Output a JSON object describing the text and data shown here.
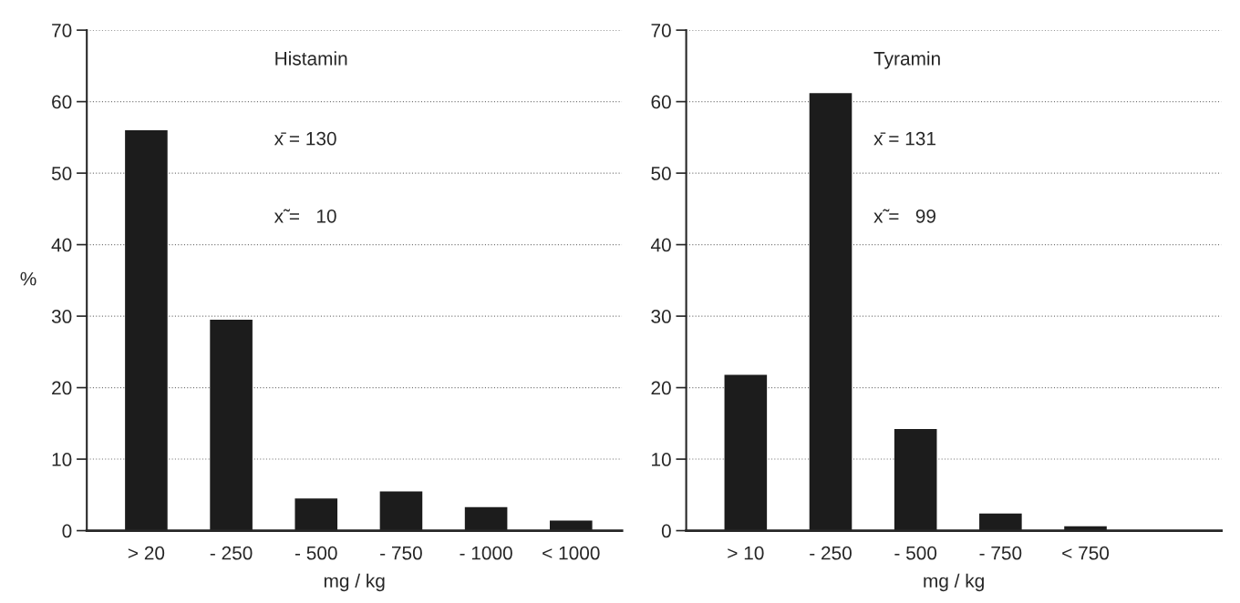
{
  "chart_data": [
    {
      "type": "bar",
      "title": "Histamin",
      "xlabel": "mg / kg",
      "ylabel": "%",
      "categories": [
        "> 20",
        "- 250",
        "- 500",
        "- 750",
        "- 1000",
        "< 1000"
      ],
      "values": [
        56,
        29.5,
        4.5,
        5.5,
        3.3,
        1.4
      ],
      "color": "#1c1c1c",
      "ylim": [
        0,
        70
      ],
      "yticks": [
        0,
        10,
        20,
        30,
        40,
        50,
        60,
        70
      ],
      "grid": "y",
      "annotations": [
        "x̄ = 130",
        "x̃ =   10"
      ]
    },
    {
      "type": "bar",
      "title": "Tyramin",
      "xlabel": "mg / kg",
      "categories": [
        "> 10",
        "- 250",
        "- 500",
        "- 750",
        "< 750"
      ],
      "values": [
        21.8,
        61.2,
        14.2,
        2.4,
        0.6
      ],
      "color": "#1c1c1c",
      "ylim": [
        0,
        70
      ],
      "yticks": [
        0,
        10,
        20,
        30,
        40,
        50,
        60,
        70
      ],
      "grid": "y",
      "annotations": [
        "x̄ = 131",
        "x̃ =   99"
      ]
    }
  ]
}
